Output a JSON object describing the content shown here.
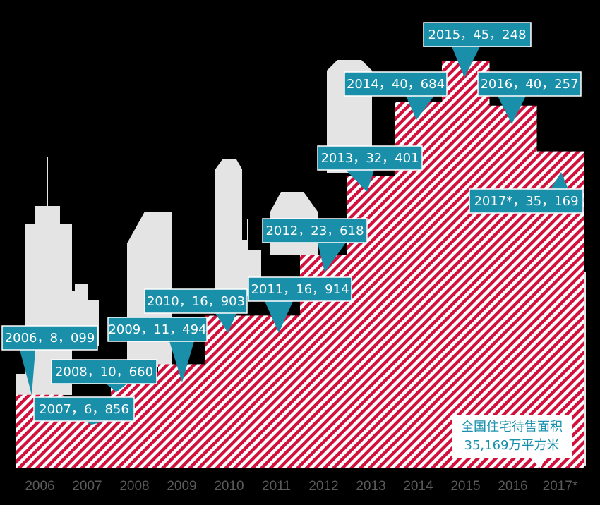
{
  "chart_data": {
    "type": "bar",
    "categories": [
      "2006",
      "2007",
      "2008",
      "2009",
      "2010",
      "2011",
      "2012",
      "2013",
      "2014",
      "2015",
      "2016",
      "2017*"
    ],
    "values": [
      8099,
      6856,
      10660,
      11494,
      16903,
      16914,
      23618,
      32401,
      40684,
      45248,
      40257,
      35169
    ],
    "value_labels": [
      "8，099",
      "6，856",
      "10，660",
      "11，494",
      "16，903",
      "16，914",
      "23，618",
      "32，401",
      "40，684",
      "45，248",
      "40，257",
      "35，169"
    ],
    "separator": "，",
    "color": "#d2103c",
    "ylim": [
      0,
      52000
    ],
    "annotation": [
      "全国住宅待售面积",
      "35,169万平方米"
    ]
  }
}
